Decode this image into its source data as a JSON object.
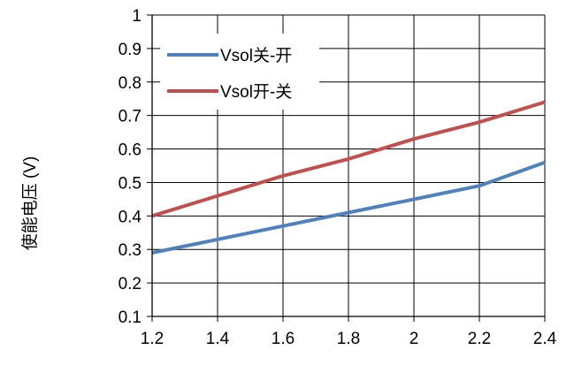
{
  "chart_data": {
    "type": "line",
    "title": "",
    "xlabel": "",
    "ylabel": "使能电压 (V)",
    "x": [
      1.2,
      1.4,
      1.6,
      1.8,
      2.0,
      2.2,
      2.4
    ],
    "xlim": [
      1.2,
      2.4
    ],
    "ylim": [
      0.1,
      1.0
    ],
    "x_ticks": [
      "1.2",
      "1.4",
      "1.6",
      "1.8",
      "2",
      "2.2",
      "2.4"
    ],
    "y_ticks": [
      "0.1",
      "0.2",
      "0.3",
      "0.4",
      "0.5",
      "0.6",
      "0.7",
      "0.8",
      "0.9",
      "1"
    ],
    "x_tick_values": [
      1.2,
      1.4,
      1.6,
      1.8,
      2.0,
      2.2,
      2.4
    ],
    "y_tick_values": [
      0.1,
      0.2,
      0.3,
      0.4,
      0.5,
      0.6,
      0.7,
      0.8,
      0.9,
      1.0
    ],
    "grid": true,
    "legend_position": "top-left",
    "series": [
      {
        "name": "Vsol关-开",
        "color": "#4f81bd",
        "values": [
          0.29,
          0.33,
          0.37,
          0.41,
          0.45,
          0.49,
          0.56
        ]
      },
      {
        "name": "Vsol开-关",
        "color": "#c0504d",
        "values": [
          0.4,
          0.46,
          0.52,
          0.57,
          0.63,
          0.68,
          0.74
        ]
      }
    ]
  }
}
